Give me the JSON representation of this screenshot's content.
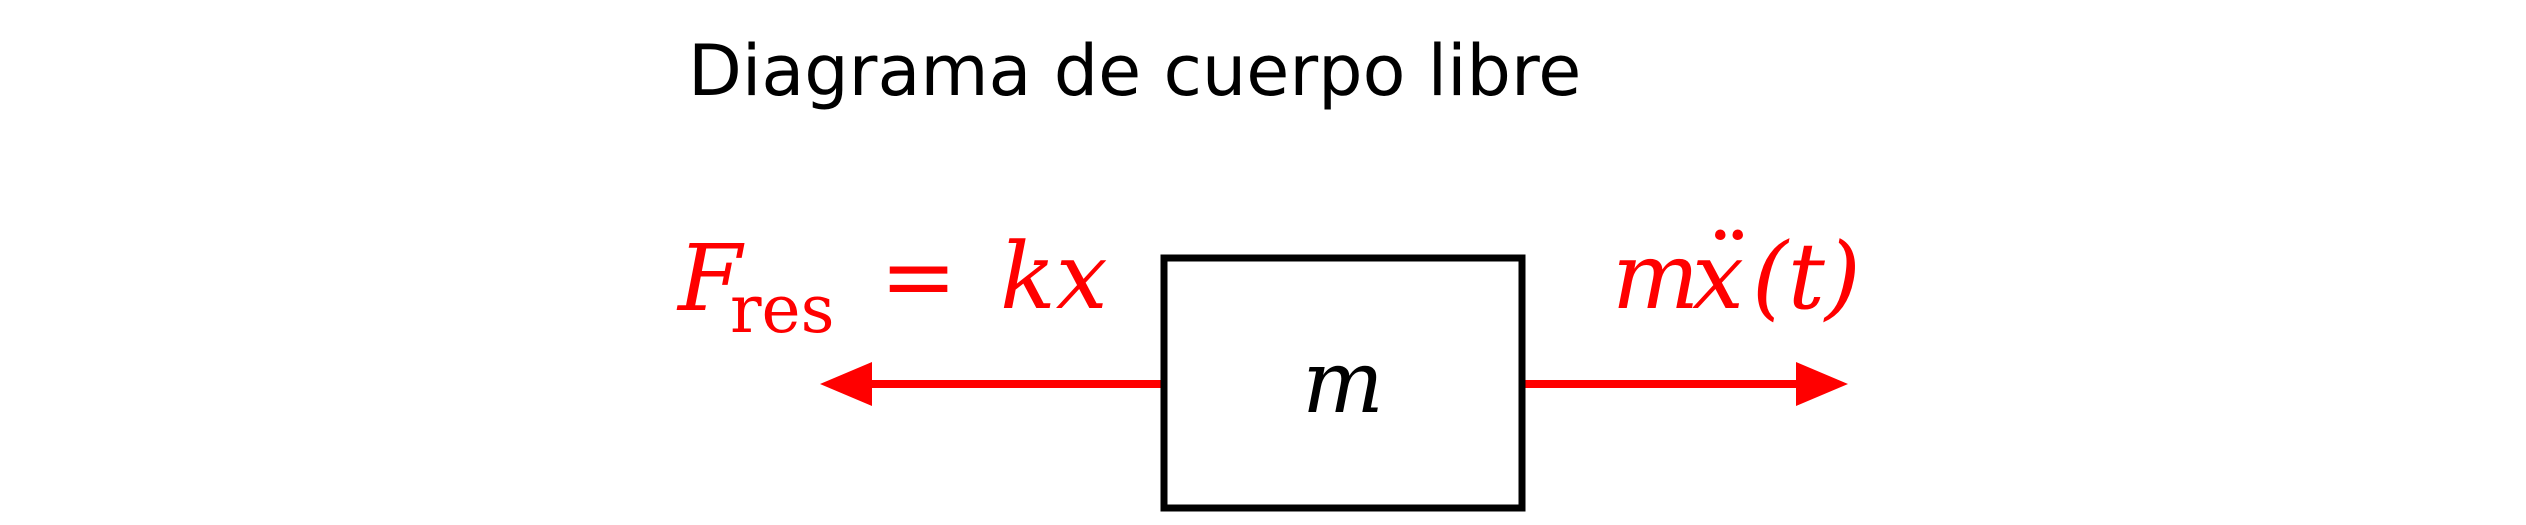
{
  "title": "Diagrama de cuerpo libre",
  "mass_label": "m",
  "left_force": {
    "symbol": "F",
    "subscript": "res",
    "equals": "=",
    "expression": "kx"
  },
  "right_force": {
    "symbol": "m",
    "dots": "¨",
    "variable": "x",
    "arg": "(t)"
  },
  "colors": {
    "force": "#ff0000",
    "box": "#000000",
    "text": "#000000"
  }
}
